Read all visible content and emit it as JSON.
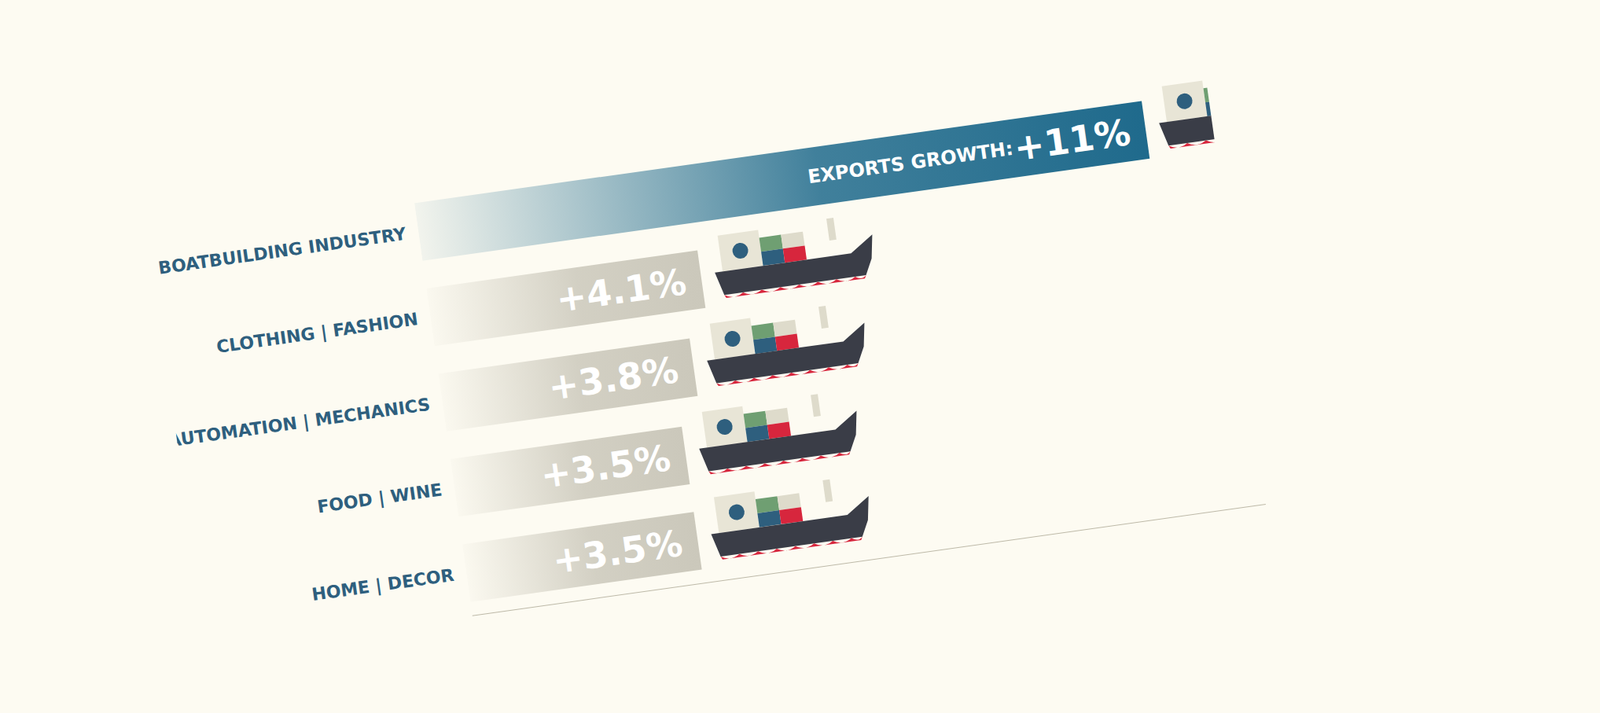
{
  "chart_data": {
    "type": "bar",
    "orientation": "horizontal",
    "categories": [
      "BOATBUILDING INDUSTRY",
      "CLOTHING | FASHION",
      "AUTOMATION | MECHANICS",
      "FOOD | WINE",
      "HOME | DECOR"
    ],
    "values": [
      11,
      4.1,
      3.8,
      3.5,
      3.5
    ],
    "value_labels": [
      "+11%",
      "+4.1%",
      "+3.8%",
      "+3.5%",
      "+3.5%"
    ],
    "data_labels": true,
    "annotation": "EXPORTS GROWTH:",
    "colors": [
      "#1f6a8c",
      "#cbc8bb",
      "#cbc8bb",
      "#cbc8bb",
      "#cbc8bb"
    ],
    "xlim": [
      0,
      12
    ],
    "tick_labels": "y"
  }
}
